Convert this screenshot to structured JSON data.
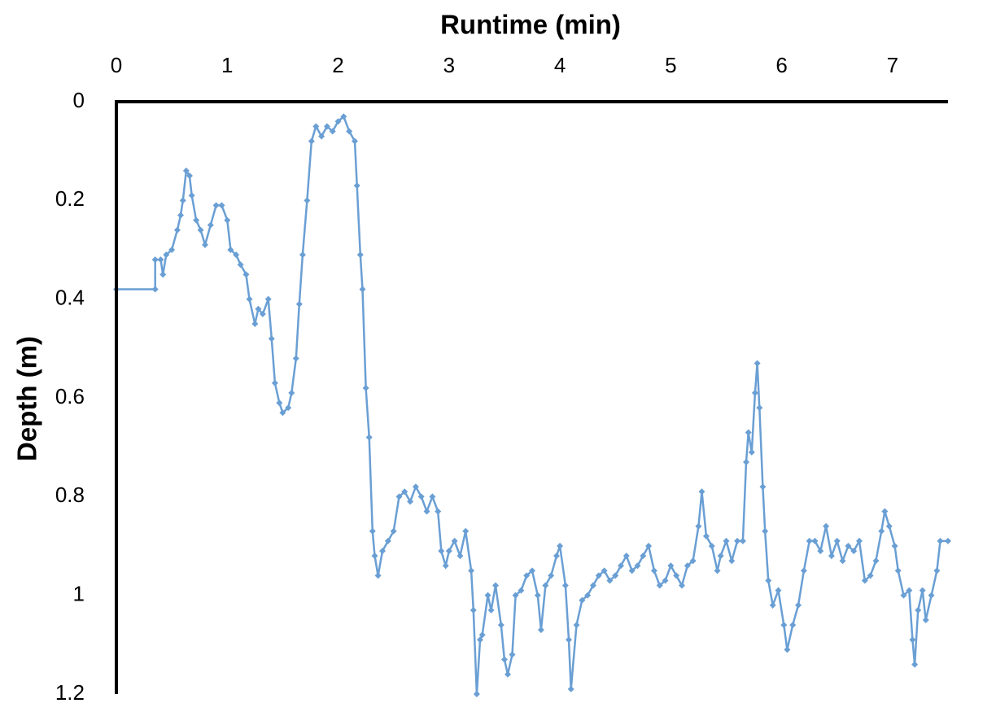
{
  "chart_data": {
    "type": "line",
    "title": "Runtime (min)",
    "y_label": "Depth (m)",
    "x": [
      0,
      0.35,
      0.35,
      0.4,
      0.42,
      0.45,
      0.5,
      0.55,
      0.58,
      0.6,
      0.63,
      0.66,
      0.68,
      0.72,
      0.76,
      0.8,
      0.85,
      0.9,
      0.95,
      1.0,
      1.03,
      1.08,
      1.12,
      1.17,
      1.2,
      1.25,
      1.28,
      1.32,
      1.37,
      1.4,
      1.43,
      1.47,
      1.5,
      1.55,
      1.58,
      1.62,
      1.65,
      1.68,
      1.72,
      1.76,
      1.8,
      1.85,
      1.9,
      1.95,
      2.0,
      2.05,
      2.1,
      2.15,
      2.17,
      2.2,
      2.22,
      2.25,
      2.28,
      2.31,
      2.33,
      2.36,
      2.4,
      2.45,
      2.5,
      2.55,
      2.6,
      2.65,
      2.7,
      2.75,
      2.8,
      2.85,
      2.9,
      2.93,
      2.97,
      3.0,
      3.05,
      3.1,
      3.15,
      3.2,
      3.22,
      3.25,
      3.28,
      3.3,
      3.35,
      3.38,
      3.42,
      3.47,
      3.5,
      3.53,
      3.57,
      3.6,
      3.65,
      3.7,
      3.75,
      3.8,
      3.83,
      3.87,
      3.92,
      3.97,
      4.0,
      4.05,
      4.08,
      4.1,
      4.15,
      4.2,
      4.25,
      4.3,
      4.35,
      4.4,
      4.45,
      4.5,
      4.55,
      4.6,
      4.65,
      4.7,
      4.75,
      4.8,
      4.85,
      4.9,
      4.95,
      5.0,
      5.05,
      5.1,
      5.15,
      5.2,
      5.25,
      5.28,
      5.32,
      5.37,
      5.42,
      5.45,
      5.5,
      5.55,
      5.6,
      5.65,
      5.68,
      5.7,
      5.73,
      5.76,
      5.78,
      5.8,
      5.83,
      5.85,
      5.88,
      5.92,
      5.97,
      6.02,
      6.05,
      6.1,
      6.15,
      6.2,
      6.25,
      6.3,
      6.35,
      6.4,
      6.45,
      6.5,
      6.55,
      6.6,
      6.65,
      6.7,
      6.75,
      6.8,
      6.85,
      6.9,
      6.93,
      6.97,
      7.02,
      7.05,
      7.1,
      7.15,
      7.18,
      7.2,
      7.23,
      7.27,
      7.3,
      7.35,
      7.4,
      7.43,
      7.5
    ],
    "values": [
      0.38,
      0.38,
      0.32,
      0.32,
      0.35,
      0.31,
      0.3,
      0.26,
      0.23,
      0.2,
      0.14,
      0.15,
      0.19,
      0.24,
      0.26,
      0.29,
      0.25,
      0.21,
      0.21,
      0.24,
      0.3,
      0.31,
      0.33,
      0.35,
      0.4,
      0.45,
      0.42,
      0.43,
      0.4,
      0.48,
      0.57,
      0.61,
      0.63,
      0.62,
      0.59,
      0.52,
      0.41,
      0.31,
      0.2,
      0.08,
      0.05,
      0.07,
      0.05,
      0.06,
      0.04,
      0.03,
      0.06,
      0.08,
      0.17,
      0.31,
      0.38,
      0.58,
      0.68,
      0.87,
      0.92,
      0.96,
      0.91,
      0.89,
      0.87,
      0.8,
      0.79,
      0.81,
      0.78,
      0.8,
      0.83,
      0.8,
      0.83,
      0.91,
      0.94,
      0.91,
      0.89,
      0.92,
      0.87,
      0.95,
      1.03,
      1.2,
      1.09,
      1.08,
      1.0,
      1.03,
      0.98,
      1.06,
      1.13,
      1.16,
      1.12,
      1.0,
      0.99,
      0.96,
      0.95,
      1.0,
      1.07,
      0.98,
      0.96,
      0.92,
      0.9,
      0.98,
      1.09,
      1.19,
      1.06,
      1.01,
      1.0,
      0.98,
      0.96,
      0.95,
      0.97,
      0.96,
      0.94,
      0.92,
      0.95,
      0.94,
      0.92,
      0.9,
      0.95,
      0.98,
      0.97,
      0.94,
      0.96,
      0.98,
      0.94,
      0.93,
      0.86,
      0.79,
      0.88,
      0.9,
      0.95,
      0.92,
      0.89,
      0.93,
      0.89,
      0.89,
      0.73,
      0.67,
      0.71,
      0.59,
      0.53,
      0.62,
      0.78,
      0.87,
      0.97,
      1.02,
      0.99,
      1.06,
      1.11,
      1.06,
      1.02,
      0.95,
      0.89,
      0.89,
      0.91,
      0.86,
      0.92,
      0.89,
      0.93,
      0.9,
      0.91,
      0.89,
      0.97,
      0.96,
      0.93,
      0.87,
      0.83,
      0.86,
      0.9,
      0.95,
      1.0,
      0.99,
      1.09,
      1.14,
      1.03,
      0.99,
      1.05,
      1.0,
      0.95,
      0.89,
      0.89
    ],
    "color": "#6a9fd4",
    "xlim": [
      0,
      7.5
    ],
    "xticks": [
      0,
      1,
      2,
      3,
      4,
      5,
      6,
      7
    ],
    "ylim": [
      0,
      1.2
    ],
    "yticks": [
      0,
      0.2,
      0.4,
      0.6,
      0.8,
      1,
      1.2
    ],
    "y_inverted": true,
    "grid": false
  }
}
